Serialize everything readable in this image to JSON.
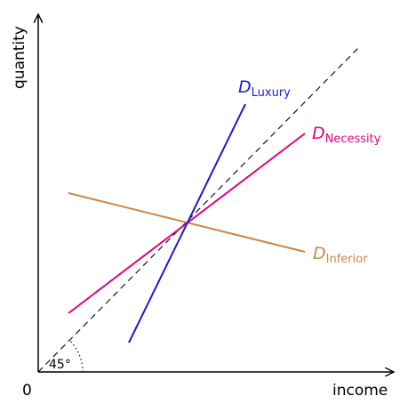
{
  "axes": {
    "x_label": "income",
    "y_label": "quantity",
    "origin": "0",
    "angle": "45°"
  },
  "curves": [
    {
      "symbol": "D",
      "subscript": "Luxury"
    },
    {
      "symbol": "D",
      "subscript": "Necessity"
    },
    {
      "symbol": "D",
      "subscript": "Inferior"
    }
  ]
}
